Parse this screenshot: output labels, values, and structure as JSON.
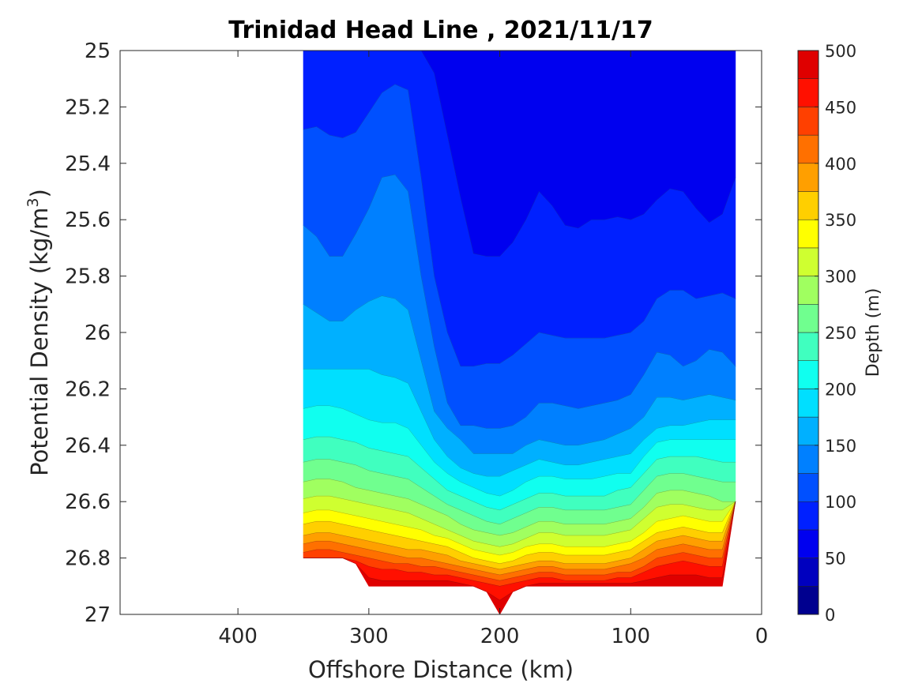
{
  "chart_data": {
    "type": "contour",
    "title": "Trinidad Head Line , 2021/11/17",
    "xlabel": "Offshore Distance (km)",
    "ylabel_main": "Potential Density (kg/m",
    "ylabel_sup": "3",
    "ylabel_close": ")",
    "xlim": [
      490,
      0
    ],
    "ylim": [
      25,
      27
    ],
    "x_reversed": true,
    "y_reversed": true,
    "x_ticks": [
      400,
      300,
      200,
      100,
      0
    ],
    "x_tick_labels": [
      "400",
      "300",
      "200",
      "100",
      "0"
    ],
    "y_ticks": [
      25,
      25.2,
      25.4,
      25.6,
      25.8,
      26,
      26.2,
      26.4,
      26.6,
      26.8,
      27
    ],
    "y_tick_labels": [
      "25",
      "25.2",
      "25.4",
      "25.6",
      "25.8",
      "26",
      "26.2",
      "26.4",
      "26.6",
      "26.8",
      "27"
    ],
    "grid": false,
    "colorbar": {
      "label": "Depth (m)",
      "levels": [
        0,
        25,
        50,
        75,
        100,
        125,
        150,
        175,
        200,
        225,
        250,
        275,
        300,
        325,
        350,
        375,
        400,
        425,
        450,
        475,
        500
      ],
      "tick_values": [
        0,
        50,
        100,
        150,
        200,
        250,
        300,
        350,
        400,
        450,
        500
      ],
      "tick_labels": [
        "0",
        "50",
        "100",
        "150",
        "200",
        "250",
        "300",
        "350",
        "400",
        "450",
        "500"
      ],
      "colors": [
        "#00008f",
        "#0000bf",
        "#0000ef",
        "#0020ff",
        "#0050ff",
        "#0080ff",
        "#00b0ff",
        "#00dfff",
        "#10ffef",
        "#40ffbf",
        "#70ff8f",
        "#a0ff60",
        "#cfff30",
        "#ffff00",
        "#ffcf00",
        "#ff9f00",
        "#ff7000",
        "#ff4000",
        "#ff1000",
        "#df0000",
        "#af0000"
      ]
    },
    "stations_x": [
      350,
      340,
      330,
      320,
      310,
      300,
      290,
      280,
      270,
      260,
      250,
      240,
      230,
      220,
      210,
      200,
      190,
      180,
      170,
      160,
      150,
      140,
      130,
      120,
      110,
      100,
      90,
      80,
      70,
      60,
      50,
      40,
      30,
      20
    ],
    "top_boundary": [
      25,
      25,
      25,
      25,
      25,
      25,
      25,
      25,
      25,
      25,
      25,
      25,
      25,
      25,
      25,
      25,
      25,
      25,
      25,
      25,
      25,
      25,
      25,
      25,
      25,
      25,
      25,
      25,
      25,
      25,
      25,
      25,
      25,
      25
    ],
    "bottom_boundary": [
      26.8,
      26.8,
      26.8,
      26.8,
      26.82,
      26.9,
      26.9,
      26.9,
      26.9,
      26.9,
      26.9,
      26.9,
      26.9,
      26.9,
      26.92,
      27,
      26.92,
      26.9,
      26.9,
      26.9,
      26.9,
      26.9,
      26.9,
      26.9,
      26.9,
      26.9,
      26.9,
      26.9,
      26.9,
      26.9,
      26.9,
      26.9,
      26.9,
      26.6
    ],
    "contours": [
      {
        "level": 75,
        "sigma": [
          25,
          25,
          25,
          25,
          25,
          25,
          25,
          25,
          25,
          25,
          25.08,
          25.3,
          25.52,
          25.72,
          25.73,
          25.73,
          25.68,
          25.6,
          25.5,
          25.55,
          25.62,
          25.63,
          25.6,
          25.6,
          25.59,
          25.6,
          25.58,
          25.53,
          25.49,
          25.5,
          25.56,
          25.61,
          25.58,
          25.45
        ]
      },
      {
        "level": 100,
        "sigma": [
          25.28,
          25.27,
          25.3,
          25.31,
          25.29,
          25.22,
          25.15,
          25.12,
          25.14,
          25.45,
          25.8,
          26.0,
          26.12,
          26.12,
          26.11,
          26.11,
          26.08,
          26.04,
          26.0,
          26.01,
          26.02,
          26.02,
          26.02,
          26.02,
          26.01,
          26.0,
          25.96,
          25.88,
          25.85,
          25.85,
          25.88,
          25.87,
          25.86,
          25.88
        ]
      },
      {
        "level": 125,
        "sigma": [
          25.62,
          25.66,
          25.73,
          25.73,
          25.65,
          25.56,
          25.45,
          25.44,
          25.5,
          25.8,
          26.05,
          26.25,
          26.33,
          26.33,
          26.34,
          26.34,
          26.33,
          26.3,
          26.25,
          26.25,
          26.26,
          26.27,
          26.26,
          26.25,
          26.24,
          26.22,
          26.15,
          26.07,
          26.08,
          26.12,
          26.1,
          26.06,
          26.07,
          26.12
        ]
      },
      {
        "level": 150,
        "sigma": [
          25.9,
          25.93,
          25.96,
          25.96,
          25.92,
          25.89,
          25.87,
          25.88,
          25.92,
          26.1,
          26.28,
          26.34,
          26.38,
          26.43,
          26.43,
          26.43,
          26.43,
          26.4,
          26.38,
          26.39,
          26.4,
          26.4,
          26.39,
          26.38,
          26.36,
          26.34,
          26.3,
          26.23,
          26.23,
          26.24,
          26.23,
          26.22,
          26.23,
          26.24
        ]
      },
      {
        "level": 175,
        "sigma": [
          26.13,
          26.13,
          26.13,
          26.13,
          26.13,
          26.13,
          26.15,
          26.16,
          26.18,
          26.28,
          26.38,
          26.44,
          26.48,
          26.5,
          26.51,
          26.51,
          26.49,
          26.47,
          26.45,
          26.46,
          26.47,
          26.47,
          26.46,
          26.45,
          26.44,
          26.43,
          26.38,
          26.34,
          26.33,
          26.33,
          26.32,
          26.31,
          26.31,
          26.31
        ]
      },
      {
        "level": 200,
        "sigma": [
          26.27,
          26.26,
          26.26,
          26.27,
          26.29,
          26.31,
          26.32,
          26.32,
          26.34,
          26.4,
          26.46,
          26.5,
          26.53,
          26.55,
          26.57,
          26.58,
          26.56,
          26.53,
          26.51,
          26.51,
          26.52,
          26.52,
          26.52,
          26.51,
          26.5,
          26.5,
          26.44,
          26.39,
          26.38,
          26.38,
          26.38,
          26.38,
          26.38,
          26.38
        ]
      },
      {
        "level": 225,
        "sigma": [
          26.38,
          26.37,
          26.37,
          26.38,
          26.39,
          26.41,
          26.42,
          26.43,
          26.44,
          26.48,
          26.52,
          26.56,
          26.58,
          26.6,
          26.62,
          26.63,
          26.61,
          26.59,
          26.57,
          26.57,
          26.58,
          26.58,
          26.58,
          26.58,
          26.56,
          26.55,
          26.5,
          26.45,
          26.44,
          26.44,
          26.44,
          26.45,
          26.46,
          26.46
        ]
      },
      {
        "level": 250,
        "sigma": [
          26.46,
          26.45,
          26.45,
          26.46,
          26.47,
          26.49,
          26.5,
          26.51,
          26.52,
          26.55,
          26.58,
          26.61,
          26.63,
          26.65,
          26.67,
          26.68,
          26.66,
          26.64,
          26.62,
          26.62,
          26.63,
          26.63,
          26.63,
          26.63,
          26.62,
          26.61,
          26.56,
          26.51,
          26.5,
          26.5,
          26.51,
          26.52,
          26.53,
          26.53
        ]
      },
      {
        "level": 275,
        "sigma": [
          26.53,
          26.52,
          26.52,
          26.53,
          26.55,
          26.56,
          26.57,
          26.58,
          26.59,
          26.61,
          26.63,
          26.65,
          26.68,
          26.7,
          26.71,
          26.72,
          26.71,
          26.69,
          26.67,
          26.67,
          26.68,
          26.68,
          26.68,
          26.68,
          26.67,
          26.66,
          26.62,
          26.57,
          26.56,
          26.56,
          26.57,
          26.58,
          26.6,
          26.6
        ]
      },
      {
        "level": 300,
        "sigma": [
          26.59,
          26.58,
          26.58,
          26.59,
          26.6,
          26.61,
          26.62,
          26.63,
          26.64,
          26.66,
          26.68,
          26.7,
          26.72,
          26.74,
          26.75,
          26.76,
          26.75,
          26.73,
          26.71,
          26.71,
          26.72,
          26.72,
          26.72,
          26.72,
          26.71,
          26.7,
          26.66,
          26.62,
          26.61,
          26.61,
          26.62,
          26.63,
          26.63,
          26.63
        ]
      },
      {
        "level": 325,
        "sigma": [
          26.64,
          26.63,
          26.63,
          26.64,
          26.65,
          26.66,
          26.67,
          26.68,
          26.69,
          26.7,
          26.72,
          26.73,
          26.75,
          26.77,
          26.78,
          26.79,
          26.78,
          26.76,
          26.75,
          26.75,
          26.76,
          26.76,
          26.76,
          26.76,
          26.75,
          26.74,
          26.71,
          26.67,
          26.66,
          26.65,
          26.66,
          26.67,
          26.67,
          26.67
        ]
      },
      {
        "level": 350,
        "sigma": [
          26.68,
          26.67,
          26.67,
          26.68,
          26.69,
          26.7,
          26.71,
          26.72,
          26.73,
          26.74,
          26.75,
          26.76,
          26.78,
          26.8,
          26.81,
          26.82,
          26.81,
          26.79,
          26.78,
          26.78,
          26.79,
          26.79,
          26.79,
          26.79,
          26.78,
          26.77,
          26.74,
          26.71,
          26.7,
          26.69,
          26.7,
          26.71,
          26.71,
          26.71
        ]
      },
      {
        "level": 375,
        "sigma": [
          26.72,
          26.71,
          26.71,
          26.72,
          26.73,
          26.74,
          26.75,
          26.76,
          26.77,
          26.77,
          26.78,
          26.79,
          26.81,
          26.82,
          26.83,
          26.84,
          26.83,
          26.82,
          26.81,
          26.81,
          26.82,
          26.82,
          26.82,
          26.82,
          26.81,
          26.8,
          26.77,
          26.74,
          26.73,
          26.72,
          26.73,
          26.74,
          26.74,
          26.74
        ]
      },
      {
        "level": 400,
        "sigma": [
          26.75,
          26.74,
          26.74,
          26.75,
          26.76,
          26.77,
          26.78,
          26.79,
          26.8,
          26.8,
          26.81,
          26.82,
          26.83,
          26.84,
          26.85,
          26.86,
          26.85,
          26.84,
          26.83,
          26.83,
          26.84,
          26.84,
          26.84,
          26.84,
          26.83,
          26.82,
          26.8,
          26.77,
          26.76,
          26.75,
          26.76,
          26.77,
          26.77,
          26.77
        ]
      },
      {
        "level": 425,
        "sigma": [
          26.78,
          26.77,
          26.77,
          26.78,
          26.79,
          26.8,
          26.81,
          26.82,
          26.82,
          26.83,
          26.83,
          26.84,
          26.85,
          26.86,
          26.87,
          26.88,
          26.87,
          26.86,
          26.85,
          26.85,
          26.86,
          26.86,
          26.86,
          26.86,
          26.85,
          26.85,
          26.83,
          26.8,
          26.79,
          26.78,
          26.79,
          26.8,
          26.8,
          26.8
        ]
      },
      {
        "level": 450,
        "sigma": [
          26.8,
          26.8,
          26.8,
          26.8,
          26.81,
          26.83,
          26.84,
          26.84,
          26.85,
          26.85,
          26.86,
          26.86,
          26.87,
          26.88,
          26.89,
          26.9,
          26.89,
          26.88,
          26.87,
          26.87,
          26.88,
          26.88,
          26.88,
          26.88,
          26.87,
          26.87,
          26.85,
          26.83,
          26.82,
          26.81,
          26.82,
          26.83,
          26.83,
          26.83
        ]
      },
      {
        "level": 475,
        "sigma": [
          26.8,
          26.8,
          26.8,
          26.8,
          26.82,
          26.87,
          26.88,
          26.88,
          26.88,
          26.88,
          26.88,
          26.88,
          26.89,
          26.9,
          26.92,
          26.95,
          26.92,
          26.9,
          26.89,
          26.89,
          26.89,
          26.89,
          26.89,
          26.89,
          26.89,
          26.89,
          26.88,
          26.87,
          26.86,
          26.86,
          26.86,
          26.87,
          26.87,
          26.87
        ]
      }
    ]
  }
}
